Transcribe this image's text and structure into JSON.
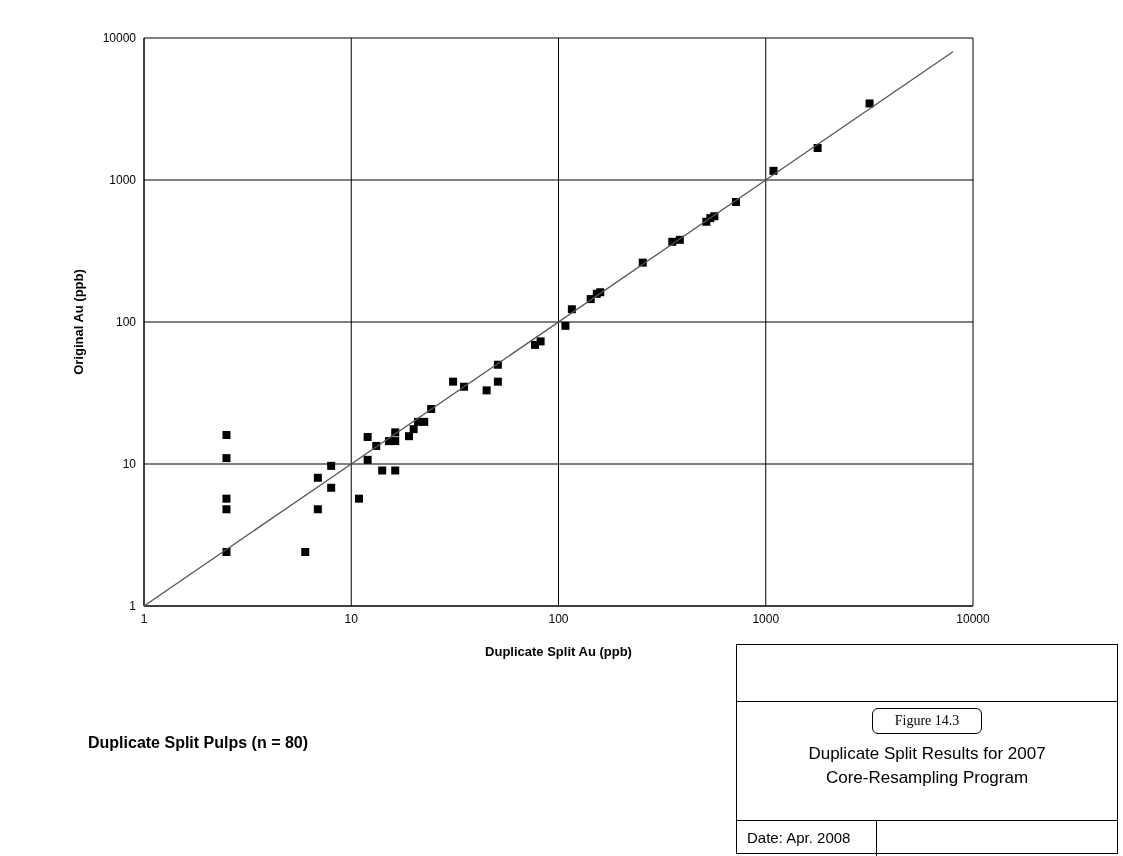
{
  "chart_data": {
    "type": "scatter",
    "xlabel": "Duplicate Split Au (ppb)",
    "ylabel": "Original Au (ppb)",
    "log": "xy",
    "grid": true,
    "marker": "square",
    "xlim": [
      1,
      10000
    ],
    "xticks": [
      1,
      10,
      100,
      1000,
      10000
    ],
    "ylim": [
      1,
      10000
    ],
    "yticks": [
      1,
      10,
      100,
      1000,
      10000
    ],
    "series": [
      {
        "color": "#000000",
        "x": [
          2.5,
          2.5,
          2.5,
          2.5,
          2.5,
          6,
          6.9,
          6.9,
          8,
          8,
          10.9,
          12,
          12,
          13.2,
          14.1,
          15.2,
          16.3,
          16.3,
          16.3,
          19,
          20,
          21,
          22.5,
          24.3,
          31,
          35,
          45,
          51,
          51,
          77,
          82,
          108,
          116,
          143,
          153,
          159,
          255,
          354,
          385,
          517,
          540,
          565,
          718,
          1090,
          1780,
          3170
        ],
        "values": [
          16,
          11,
          5.7,
          4.8,
          2.4,
          2.4,
          8,
          4.8,
          9.7,
          6.8,
          5.7,
          15.5,
          10.7,
          13.4,
          9,
          14.5,
          16.7,
          14.5,
          9,
          15.7,
          17.6,
          19.8,
          19.8,
          24.4,
          38,
          35,
          33,
          38,
          50,
          69,
          73,
          94,
          123,
          145,
          158,
          162,
          262,
          367,
          379,
          508,
          539,
          556,
          700,
          1160,
          1680,
          3460
        ]
      },
      {
        "type": "line",
        "color": "#555555",
        "line_style": "solid",
        "marker": "none",
        "x": [
          1,
          8000
        ],
        "values": [
          1,
          8000
        ]
      }
    ],
    "annotations": [
      "Duplicate Split Pulps (n = 80)",
      "Figure 14.3",
      "Duplicate Split Results for 2007 Core-Resampling Program",
      "Date: Apr. 2008"
    ]
  }
}
